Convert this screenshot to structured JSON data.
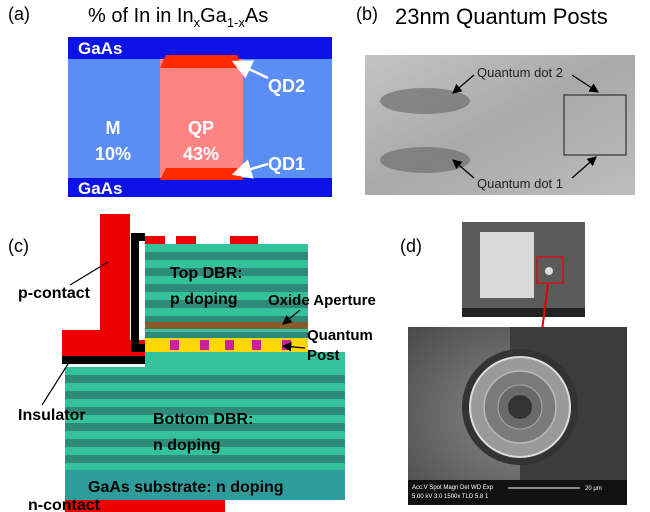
{
  "panel_a": {
    "label": "(a)",
    "title": {
      "prefix": "% of In in In",
      "sub1": "x",
      "mid": "Ga",
      "sub2": "1-x",
      "suffix": "As"
    },
    "gaas_top": "GaAs",
    "gaas_bottom": "GaAs",
    "qd2": "QD2",
    "qd1": "QD1",
    "matrix": "M",
    "matrix_pct": "10%",
    "post": "QP",
    "post_pct": "43%"
  },
  "panel_b": {
    "label": "(b)",
    "title": "23nm Quantum Posts",
    "dot2": "Quantum dot 2",
    "dot1": "Quantum dot 1"
  },
  "panel_c": {
    "label": "(c)",
    "top_dbr": "Top DBR:",
    "top_doping": "p doping",
    "oxide": "Oxide Aperture",
    "qp_line1": "Quantum",
    "qp_line2": "Post",
    "p_contact": "p-contact",
    "insulator": "Insulator",
    "bottom_dbr": "Bottom DBR:",
    "bottom_doping": "n doping",
    "substrate": "GaAs substrate: n doping",
    "n_contact": "n-contact"
  },
  "panel_d": {
    "label": "(d)",
    "sem_header": "Acc.V Spot Magn Det WD Exp",
    "sem_values": "5.00 kV 3.0 1500x TLD 5.8 1",
    "scale_bar": "20 μm"
  }
}
